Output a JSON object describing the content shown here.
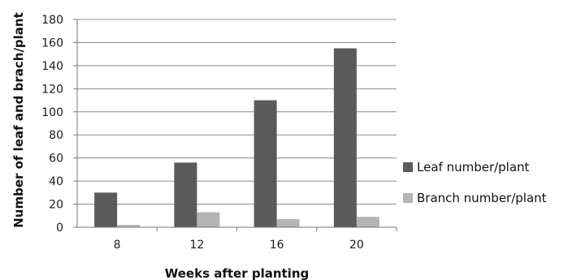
{
  "chart_data": {
    "type": "bar",
    "title": "",
    "xlabel": "Weeks after planting",
    "ylabel": "Number of leaf and brach/plant",
    "categories": [
      "8",
      "12",
      "16",
      "20"
    ],
    "ylim": [
      0,
      180
    ],
    "yticks": [
      0,
      20,
      40,
      60,
      80,
      100,
      120,
      140,
      160,
      180
    ],
    "grid": true,
    "legend_position": "right",
    "series": [
      {
        "name": "Leaf number/plant",
        "color": "#5a5a5a",
        "values": [
          30,
          56,
          110,
          155
        ]
      },
      {
        "name": "Branch number/plant",
        "color": "#b4b4b4",
        "values": [
          2,
          13,
          7,
          9
        ]
      }
    ]
  }
}
